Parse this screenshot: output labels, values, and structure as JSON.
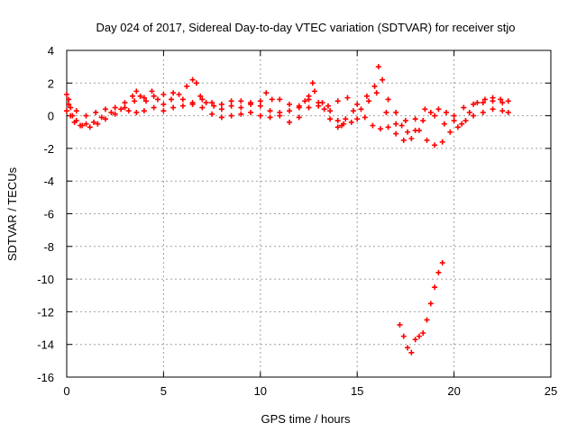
{
  "chart_data": {
    "type": "scatter",
    "title": "Day 024 of 2017, Sidereal Day-to-day VTEC variation (SDTVAR) for receiver stjo",
    "xlabel": "GPS time / hours",
    "ylabel": "SDTVAR / TECUs",
    "xlim": [
      0,
      25
    ],
    "ylim": [
      -16,
      4
    ],
    "xticks": [
      0,
      5,
      10,
      15,
      20,
      25
    ],
    "yticks": [
      -16,
      -14,
      -12,
      -10,
      -8,
      -6,
      -4,
      -2,
      0,
      2,
      4
    ],
    "xtick_labels": [
      "0",
      "5",
      "10",
      "15",
      "20",
      "25"
    ],
    "ytick_labels": [
      "-16",
      "-14",
      "-12",
      "-10",
      "-8",
      "-6",
      "-4",
      "-2",
      "0",
      "2",
      "4"
    ],
    "grid": true,
    "legend": "none",
    "marker": "plus",
    "color": "#ff0000",
    "series": [
      {
        "values": [
          [
            0,
            1.3
          ],
          [
            0.1,
            1.0
          ],
          [
            0.2,
            0.5
          ],
          [
            0.3,
            0.0
          ],
          [
            0.5,
            -0.3
          ],
          [
            0.8,
            -0.6
          ],
          [
            1.2,
            -0.7
          ],
          [
            1.6,
            -0.5
          ],
          [
            2.0,
            -0.2
          ],
          [
            2.5,
            0.1
          ],
          [
            3.0,
            0.5
          ],
          [
            3.4,
            1.2
          ],
          [
            3.6,
            1.5
          ],
          [
            3.8,
            1.2
          ],
          [
            4.1,
            0.9
          ],
          [
            4.4,
            1.5
          ],
          [
            4.7,
            1.0
          ],
          [
            5.0,
            0.7
          ],
          [
            5.4,
            1.0
          ],
          [
            5.8,
            1.3
          ],
          [
            6.2,
            1.8
          ],
          [
            6.5,
            2.2
          ],
          [
            6.7,
            2.0
          ],
          [
            6.9,
            1.2
          ],
          [
            7.2,
            0.8
          ],
          [
            7.6,
            0.6
          ],
          [
            8.0,
            0.4
          ],
          [
            8.5,
            0.6
          ],
          [
            9.0,
            0.5
          ],
          [
            9.5,
            0.7
          ],
          [
            10.0,
            0.9
          ],
          [
            10.3,
            1.4
          ],
          [
            10.6,
            1.0
          ],
          [
            11.0,
            1.0
          ],
          [
            11.5,
            0.7
          ],
          [
            12.0,
            0.5
          ],
          [
            12.3,
            0.9
          ],
          [
            12.5,
            1.2
          ],
          [
            12.7,
            2.0
          ],
          [
            12.8,
            1.5
          ],
          [
            13.2,
            0.8
          ],
          [
            13.6,
            0.3
          ],
          [
            14.0,
            -0.3
          ],
          [
            14.2,
            -0.6
          ],
          [
            14.4,
            -0.2
          ],
          [
            14.8,
            0.3
          ],
          [
            15.2,
            0.4
          ],
          [
            15.6,
            0.9
          ],
          [
            15.9,
            1.8
          ],
          [
            16.1,
            3.0
          ],
          [
            16.3,
            2.2
          ],
          [
            16.6,
            1.0
          ],
          [
            17.0,
            0.2
          ],
          [
            17.3,
            -0.6
          ],
          [
            17.6,
            -1.0
          ],
          [
            18.0,
            -0.9
          ],
          [
            18.4,
            -0.3
          ],
          [
            18.8,
            0.2
          ],
          [
            19.2,
            0.4
          ],
          [
            19.6,
            0.2
          ],
          [
            20.0,
            -0.3
          ],
          [
            20.4,
            -0.5
          ],
          [
            20.8,
            0.2
          ],
          [
            21.2,
            0.8
          ],
          [
            21.6,
            1.0
          ],
          [
            22.0,
            1.1
          ],
          [
            22.4,
            1.0
          ],
          [
            22.8,
            0.9
          ]
        ]
      },
      {
        "values": [
          [
            0,
            0.3
          ],
          [
            0.2,
            0.0
          ],
          [
            0.4,
            -0.4
          ],
          [
            0.7,
            -0.6
          ],
          [
            1.0,
            -0.5
          ],
          [
            1.4,
            -0.4
          ],
          [
            1.8,
            -0.1
          ],
          [
            2.3,
            0.2
          ],
          [
            2.8,
            0.4
          ],
          [
            3.2,
            0.3
          ],
          [
            3.6,
            0.2
          ],
          [
            4.0,
            0.3
          ],
          [
            4.5,
            0.5
          ],
          [
            5.0,
            0.3
          ],
          [
            5.5,
            0.5
          ],
          [
            6.0,
            0.6
          ],
          [
            6.5,
            0.7
          ],
          [
            7.0,
            0.5
          ],
          [
            7.5,
            0.1
          ],
          [
            8.0,
            -0.1
          ],
          [
            8.5,
            0.0
          ],
          [
            9.0,
            0.1
          ],
          [
            9.5,
            0.2
          ],
          [
            10.0,
            0.0
          ],
          [
            10.5,
            -0.1
          ],
          [
            11.0,
            0.0
          ],
          [
            11.5,
            -0.4
          ],
          [
            12.0,
            -0.1
          ],
          [
            12.5,
            0.5
          ],
          [
            13.0,
            0.6
          ],
          [
            13.3,
            0.4
          ],
          [
            13.6,
            -0.2
          ],
          [
            14.0,
            -0.7
          ],
          [
            14.3,
            -0.5
          ],
          [
            14.7,
            -0.4
          ],
          [
            15.0,
            -0.2
          ],
          [
            15.4,
            -0.1
          ],
          [
            15.8,
            -0.6
          ],
          [
            16.2,
            -0.8
          ],
          [
            16.6,
            -0.7
          ],
          [
            17.0,
            -1.1
          ],
          [
            17.4,
            -1.5
          ],
          [
            17.8,
            -1.4
          ],
          [
            18.2,
            -0.9
          ],
          [
            18.6,
            -1.5
          ],
          [
            19.0,
            -1.8
          ],
          [
            19.4,
            -1.6
          ],
          [
            19.8,
            -1.0
          ],
          [
            20.2,
            -0.7
          ],
          [
            20.6,
            -0.3
          ],
          [
            21.0,
            0.0
          ],
          [
            21.5,
            0.2
          ],
          [
            22.0,
            0.4
          ],
          [
            22.5,
            0.3
          ],
          [
            22.8,
            0.2
          ]
        ]
      },
      {
        "values": [
          [
            0.1,
            0.7
          ],
          [
            0.5,
            0.3
          ],
          [
            1.0,
            0.0
          ],
          [
            1.5,
            0.2
          ],
          [
            2.0,
            0.4
          ],
          [
            2.5,
            0.5
          ],
          [
            3.0,
            0.8
          ],
          [
            3.5,
            0.9
          ],
          [
            4.0,
            1.1
          ],
          [
            4.5,
            1.2
          ],
          [
            5.0,
            1.3
          ],
          [
            5.5,
            1.4
          ],
          [
            6.0,
            1.0
          ],
          [
            6.5,
            0.8
          ],
          [
            7.0,
            1.0
          ],
          [
            7.5,
            0.8
          ],
          [
            8.0,
            0.7
          ],
          [
            8.5,
            0.9
          ],
          [
            9.0,
            0.9
          ],
          [
            9.5,
            0.8
          ],
          [
            10.0,
            0.6
          ],
          [
            10.5,
            0.3
          ],
          [
            11.0,
            0.2
          ],
          [
            11.5,
            0.3
          ],
          [
            12.0,
            0.6
          ],
          [
            12.5,
            1.0
          ],
          [
            13.0,
            0.8
          ],
          [
            13.5,
            0.6
          ],
          [
            14.0,
            0.9
          ],
          [
            14.5,
            1.1
          ],
          [
            15.0,
            0.7
          ],
          [
            15.5,
            1.2
          ],
          [
            16.0,
            1.4
          ],
          [
            16.5,
            0.2
          ],
          [
            17.0,
            -0.5
          ],
          [
            17.5,
            -0.3
          ],
          [
            18.0,
            -0.2
          ],
          [
            18.5,
            0.4
          ],
          [
            19.0,
            0.0
          ],
          [
            19.5,
            -0.5
          ],
          [
            20.0,
            0.0
          ],
          [
            20.5,
            0.5
          ],
          [
            21.0,
            0.7
          ],
          [
            21.5,
            0.8
          ],
          [
            22.0,
            0.9
          ],
          [
            22.5,
            0.8
          ]
        ]
      },
      {
        "values": [
          [
            17.2,
            -12.8
          ],
          [
            17.4,
            -13.5
          ],
          [
            17.6,
            -14.2
          ],
          [
            17.8,
            -14.5
          ],
          [
            18.0,
            -13.7
          ],
          [
            18.2,
            -13.5
          ],
          [
            18.4,
            -13.3
          ],
          [
            18.6,
            -12.5
          ],
          [
            18.8,
            -11.5
          ],
          [
            19.0,
            -10.5
          ],
          [
            19.2,
            -9.6
          ],
          [
            19.4,
            -9.0
          ]
        ]
      }
    ]
  }
}
